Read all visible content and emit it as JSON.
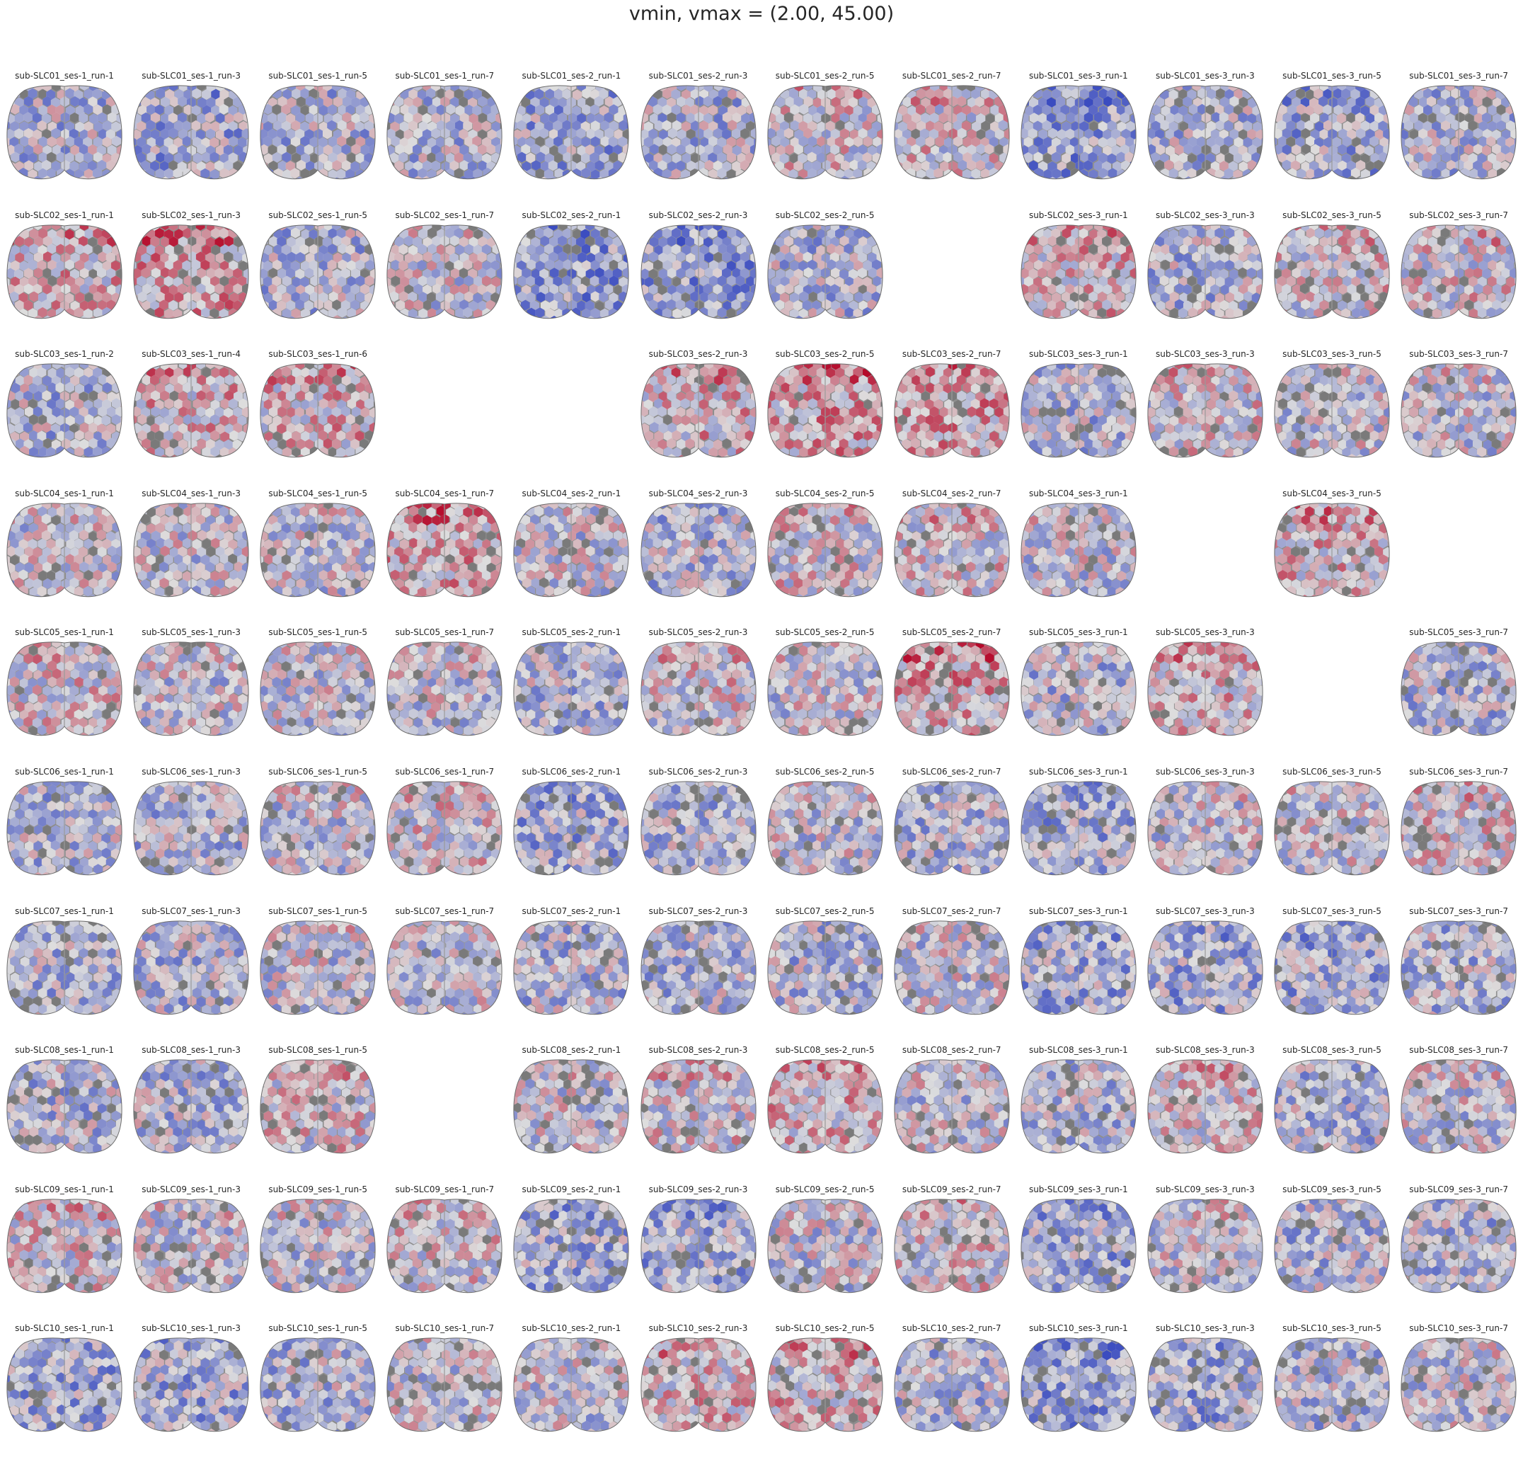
{
  "figure_title": "vmin, vmax = (2.00, 45.00)",
  "colormap": {
    "low": "#3b4cc0",
    "mid": "#dddddd",
    "high": "#b40426",
    "background_cortex": "#8c8c8c"
  },
  "rows": [
    {
      "subject": "sub-SLC01",
      "cells": [
        {
          "col": 0,
          "label": "sub-SLC01_ses-1_run-1",
          "level": 0.4
        },
        {
          "col": 1,
          "label": "sub-SLC01_ses-1_run-3",
          "level": 0.35
        },
        {
          "col": 2,
          "label": "sub-SLC01_ses-1_run-5",
          "level": 0.4
        },
        {
          "col": 3,
          "label": "sub-SLC01_ses-1_run-7",
          "level": 0.4
        },
        {
          "col": 4,
          "label": "sub-SLC01_ses-2_run-1",
          "level": 0.35
        },
        {
          "col": 5,
          "label": "sub-SLC01_ses-2_run-3",
          "level": 0.4
        },
        {
          "col": 6,
          "label": "sub-SLC01_ses-2_run-5",
          "level": 0.5
        },
        {
          "col": 7,
          "label": "sub-SLC01_ses-2_run-7",
          "level": 0.5
        },
        {
          "col": 8,
          "label": "sub-SLC01_ses-3_run-1",
          "level": 0.3
        },
        {
          "col": 9,
          "label": "sub-SLC01_ses-3_run-3",
          "level": 0.4
        },
        {
          "col": 10,
          "label": "sub-SLC01_ses-3_run-5",
          "level": 0.35
        },
        {
          "col": 11,
          "label": "sub-SLC01_ses-3_run-7",
          "level": 0.4
        }
      ]
    },
    {
      "subject": "sub-SLC02",
      "cells": [
        {
          "col": 0,
          "label": "sub-SLC02_ses-1_run-1",
          "level": 0.55
        },
        {
          "col": 1,
          "label": "sub-SLC02_ses-1_run-3",
          "level": 0.6
        },
        {
          "col": 2,
          "label": "sub-SLC02_ses-1_run-5",
          "level": 0.4
        },
        {
          "col": 3,
          "label": "sub-SLC02_ses-1_run-7",
          "level": 0.45
        },
        {
          "col": 4,
          "label": "sub-SLC02_ses-2_run-1",
          "level": 0.3
        },
        {
          "col": 5,
          "label": "sub-SLC02_ses-2_run-3",
          "level": 0.3
        },
        {
          "col": 6,
          "label": "sub-SLC02_ses-2_run-5",
          "level": 0.4
        },
        {
          "col": 8,
          "label": "sub-SLC02_ses-3_run-1",
          "level": 0.55
        },
        {
          "col": 9,
          "label": "sub-SLC02_ses-3_run-3",
          "level": 0.4
        },
        {
          "col": 10,
          "label": "sub-SLC02_ses-3_run-5",
          "level": 0.5
        },
        {
          "col": 11,
          "label": "sub-SLC02_ses-3_run-7",
          "level": 0.5
        }
      ]
    },
    {
      "subject": "sub-SLC03",
      "cells": [
        {
          "col": 0,
          "label": "sub-SLC03_ses-1_run-2",
          "level": 0.4
        },
        {
          "col": 1,
          "label": "sub-SLC03_ses-1_run-4",
          "level": 0.55
        },
        {
          "col": 2,
          "label": "sub-SLC03_ses-1_run-6",
          "level": 0.55
        },
        {
          "col": 5,
          "label": "sub-SLC03_ses-2_run-3",
          "level": 0.55
        },
        {
          "col": 6,
          "label": "sub-SLC03_ses-2_run-5",
          "level": 0.6
        },
        {
          "col": 7,
          "label": "sub-SLC03_ses-2_run-7",
          "level": 0.6
        },
        {
          "col": 8,
          "label": "sub-SLC03_ses-3_run-1",
          "level": 0.4
        },
        {
          "col": 9,
          "label": "sub-SLC03_ses-3_run-3",
          "level": 0.5
        },
        {
          "col": 10,
          "label": "sub-SLC03_ses-3_run-5",
          "level": 0.45
        },
        {
          "col": 11,
          "label": "sub-SLC03_ses-3_run-7",
          "level": 0.45
        }
      ]
    },
    {
      "subject": "sub-SLC04",
      "cells": [
        {
          "col": 0,
          "label": "sub-SLC04_ses-1_run-1",
          "level": 0.45
        },
        {
          "col": 1,
          "label": "sub-SLC04_ses-1_run-3",
          "level": 0.45
        },
        {
          "col": 2,
          "label": "sub-SLC04_ses-1_run-5",
          "level": 0.45
        },
        {
          "col": 3,
          "label": "sub-SLC04_ses-1_run-7",
          "level": 0.6
        },
        {
          "col": 4,
          "label": "sub-SLC04_ses-2_run-1",
          "level": 0.45
        },
        {
          "col": 5,
          "label": "sub-SLC04_ses-2_run-3",
          "level": 0.4
        },
        {
          "col": 6,
          "label": "sub-SLC04_ses-2_run-5",
          "level": 0.5
        },
        {
          "col": 7,
          "label": "sub-SLC04_ses-2_run-7",
          "level": 0.5
        },
        {
          "col": 8,
          "label": "sub-SLC04_ses-3_run-1",
          "level": 0.45
        },
        {
          "col": 10,
          "label": "sub-SLC04_ses-3_run-5",
          "level": 0.55
        }
      ]
    },
    {
      "subject": "sub-SLC05",
      "cells": [
        {
          "col": 0,
          "label": "sub-SLC05_ses-1_run-1",
          "level": 0.5
        },
        {
          "col": 1,
          "label": "sub-SLC05_ses-1_run-3",
          "level": 0.45
        },
        {
          "col": 2,
          "label": "sub-SLC05_ses-1_run-5",
          "level": 0.45
        },
        {
          "col": 3,
          "label": "sub-SLC05_ses-1_run-7",
          "level": 0.45
        },
        {
          "col": 4,
          "label": "sub-SLC05_ses-2_run-1",
          "level": 0.4
        },
        {
          "col": 5,
          "label": "sub-SLC05_ses-2_run-3",
          "level": 0.5
        },
        {
          "col": 6,
          "label": "sub-SLC05_ses-2_run-5",
          "level": 0.45
        },
        {
          "col": 7,
          "label": "sub-SLC05_ses-2_run-7",
          "level": 0.6
        },
        {
          "col": 8,
          "label": "sub-SLC05_ses-3_run-1",
          "level": 0.4
        },
        {
          "col": 9,
          "label": "sub-SLC05_ses-3_run-3",
          "level": 0.55
        },
        {
          "col": 11,
          "label": "sub-SLC05_ses-3_run-7",
          "level": 0.4
        }
      ]
    },
    {
      "subject": "sub-SLC06",
      "cells": [
        {
          "col": 0,
          "label": "sub-SLC06_ses-1_run-1",
          "level": 0.4
        },
        {
          "col": 1,
          "label": "sub-SLC06_ses-1_run-3",
          "level": 0.4
        },
        {
          "col": 2,
          "label": "sub-SLC06_ses-1_run-5",
          "level": 0.45
        },
        {
          "col": 3,
          "label": "sub-SLC06_ses-1_run-7",
          "level": 0.5
        },
        {
          "col": 4,
          "label": "sub-SLC06_ses-2_run-1",
          "level": 0.35
        },
        {
          "col": 5,
          "label": "sub-SLC06_ses-2_run-3",
          "level": 0.4
        },
        {
          "col": 6,
          "label": "sub-SLC06_ses-2_run-5",
          "level": 0.45
        },
        {
          "col": 7,
          "label": "sub-SLC06_ses-2_run-7",
          "level": 0.4
        },
        {
          "col": 8,
          "label": "sub-SLC06_ses-3_run-1",
          "level": 0.35
        },
        {
          "col": 9,
          "label": "sub-SLC06_ses-3_run-3",
          "level": 0.45
        },
        {
          "col": 10,
          "label": "sub-SLC06_ses-3_run-5",
          "level": 0.45
        },
        {
          "col": 11,
          "label": "sub-SLC06_ses-3_run-7",
          "level": 0.5
        }
      ]
    },
    {
      "subject": "sub-SLC07",
      "cells": [
        {
          "col": 0,
          "label": "sub-SLC07_ses-1_run-1",
          "level": 0.4
        },
        {
          "col": 1,
          "label": "sub-SLC07_ses-1_run-3",
          "level": 0.4
        },
        {
          "col": 2,
          "label": "sub-SLC07_ses-1_run-5",
          "level": 0.45
        },
        {
          "col": 3,
          "label": "sub-SLC07_ses-1_run-7",
          "level": 0.45
        },
        {
          "col": 4,
          "label": "sub-SLC07_ses-2_run-1",
          "level": 0.4
        },
        {
          "col": 5,
          "label": "sub-SLC07_ses-2_run-3",
          "level": 0.4
        },
        {
          "col": 6,
          "label": "sub-SLC07_ses-2_run-5",
          "level": 0.4
        },
        {
          "col": 7,
          "label": "sub-SLC07_ses-2_run-7",
          "level": 0.45
        },
        {
          "col": 8,
          "label": "sub-SLC07_ses-3_run-1",
          "level": 0.35
        },
        {
          "col": 9,
          "label": "sub-SLC07_ses-3_run-3",
          "level": 0.35
        },
        {
          "col": 10,
          "label": "sub-SLC07_ses-3_run-5",
          "level": 0.35
        },
        {
          "col": 11,
          "label": "sub-SLC07_ses-3_run-7",
          "level": 0.4
        }
      ]
    },
    {
      "subject": "sub-SLC08",
      "cells": [
        {
          "col": 0,
          "label": "sub-SLC08_ses-1_run-1",
          "level": 0.4
        },
        {
          "col": 1,
          "label": "sub-SLC08_ses-1_run-3",
          "level": 0.4
        },
        {
          "col": 2,
          "label": "sub-SLC08_ses-1_run-5",
          "level": 0.5
        },
        {
          "col": 4,
          "label": "sub-SLC08_ses-2_run-1",
          "level": 0.45
        },
        {
          "col": 5,
          "label": "sub-SLC08_ses-2_run-3",
          "level": 0.5
        },
        {
          "col": 6,
          "label": "sub-SLC08_ses-2_run-5",
          "level": 0.55
        },
        {
          "col": 7,
          "label": "sub-SLC08_ses-2_run-7",
          "level": 0.45
        },
        {
          "col": 8,
          "label": "sub-SLC08_ses-3_run-1",
          "level": 0.4
        },
        {
          "col": 9,
          "label": "sub-SLC08_ses-3_run-3",
          "level": 0.5
        },
        {
          "col": 10,
          "label": "sub-SLC08_ses-3_run-5",
          "level": 0.4
        },
        {
          "col": 11,
          "label": "sub-SLC08_ses-3_run-7",
          "level": 0.45
        }
      ]
    },
    {
      "subject": "sub-SLC09",
      "cells": [
        {
          "col": 0,
          "label": "sub-SLC09_ses-1_run-1",
          "level": 0.5
        },
        {
          "col": 1,
          "label": "sub-SLC09_ses-1_run-3",
          "level": 0.45
        },
        {
          "col": 2,
          "label": "sub-SLC09_ses-1_run-5",
          "level": 0.45
        },
        {
          "col": 3,
          "label": "sub-SLC09_ses-1_run-7",
          "level": 0.5
        },
        {
          "col": 4,
          "label": "sub-SLC09_ses-2_run-1",
          "level": 0.35
        },
        {
          "col": 5,
          "label": "sub-SLC09_ses-2_run-3",
          "level": 0.35
        },
        {
          "col": 6,
          "label": "sub-SLC09_ses-2_run-5",
          "level": 0.45
        },
        {
          "col": 7,
          "label": "sub-SLC09_ses-2_run-7",
          "level": 0.5
        },
        {
          "col": 8,
          "label": "sub-SLC09_ses-3_run-1",
          "level": 0.35
        },
        {
          "col": 9,
          "label": "sub-SLC09_ses-3_run-3",
          "level": 0.45
        },
        {
          "col": 10,
          "label": "sub-SLC09_ses-3_run-5",
          "level": 0.4
        },
        {
          "col": 11,
          "label": "sub-SLC09_ses-3_run-7",
          "level": 0.4
        }
      ]
    },
    {
      "subject": "sub-SLC10",
      "cells": [
        {
          "col": 0,
          "label": "sub-SLC10_ses-1_run-1",
          "level": 0.35
        },
        {
          "col": 1,
          "label": "sub-SLC10_ses-1_run-3",
          "level": 0.35
        },
        {
          "col": 2,
          "label": "sub-SLC10_ses-1_run-5",
          "level": 0.4
        },
        {
          "col": 3,
          "label": "sub-SLC10_ses-1_run-7",
          "level": 0.45
        },
        {
          "col": 4,
          "label": "sub-SLC10_ses-2_run-1",
          "level": 0.45
        },
        {
          "col": 5,
          "label": "sub-SLC10_ses-2_run-3",
          "level": 0.55
        },
        {
          "col": 6,
          "label": "sub-SLC10_ses-2_run-5",
          "level": 0.55
        },
        {
          "col": 7,
          "label": "sub-SLC10_ses-2_run-7",
          "level": 0.4
        },
        {
          "col": 8,
          "label": "sub-SLC10_ses-3_run-1",
          "level": 0.3
        },
        {
          "col": 9,
          "label": "sub-SLC10_ses-3_run-3",
          "level": 0.35
        },
        {
          "col": 10,
          "label": "sub-SLC10_ses-3_run-5",
          "level": 0.4
        },
        {
          "col": 11,
          "label": "sub-SLC10_ses-3_run-7",
          "level": 0.45
        }
      ]
    }
  ]
}
